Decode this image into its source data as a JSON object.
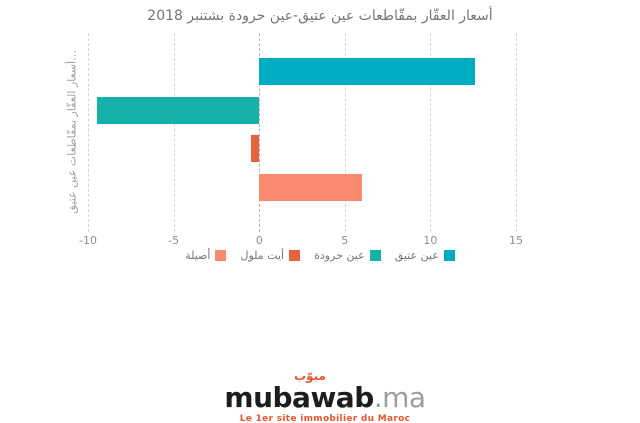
{
  "page": {
    "background": "#ffffff"
  },
  "chart_data": {
    "type": "bar",
    "orientation": "horizontal",
    "title": "أسعار العقّار بمقّاطعات عين عتيق-عين حرودة بشتنبر 2018",
    "title_color": "#757575",
    "ylabel": "أسعار العقّار بمقّاطعات عين عتيق...",
    "xlim": [
      -10,
      15
    ],
    "xticks": [
      -10,
      -5,
      0,
      5,
      10,
      15
    ],
    "grid": "vertical-dashed",
    "legend_position": "bottom",
    "categories": [
      "عين عتيق",
      "عين حرودة",
      "أيت ملول",
      "أصيلة"
    ],
    "values": [
      12.6,
      -9.5,
      -0.5,
      6
    ],
    "series": [
      {
        "name": "عين عتيق",
        "value": 12.6,
        "color": "#00ACC1"
      },
      {
        "name": "عين حرودة",
        "value": -9.5,
        "color": "#16B2A9"
      },
      {
        "name": "أيت ملول",
        "value": -0.5,
        "color": "#E8623E"
      },
      {
        "name": "أصيلة",
        "value": 6,
        "color": "#F9896F"
      }
    ]
  },
  "footer_logo": {
    "brand": "mubawab",
    "tld": ".ma",
    "arabic_mark": "مبوّب",
    "tagline": "Le 1er site immobilier du Maroc",
    "accent_color": "#E4572E"
  }
}
